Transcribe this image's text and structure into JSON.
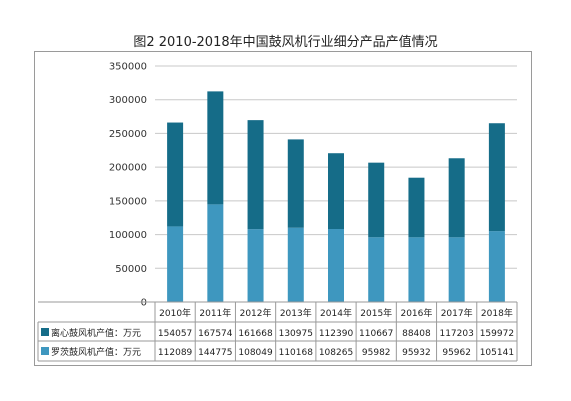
{
  "chart_data": {
    "type": "bar",
    "stacked": true,
    "title": "图2 2010-2018年中国鼓风机行业细分产品产值情况",
    "categories": [
      "2010年",
      "2011年",
      "2012年",
      "2013年",
      "2014年",
      "2015年",
      "2016年",
      "2017年",
      "2018年"
    ],
    "series": [
      {
        "name": "离心鼓风机产值：万元",
        "color": "#156c88",
        "values": [
          154057,
          167574,
          161668,
          130975,
          112390,
          110667,
          88408,
          117203,
          159972
        ]
      },
      {
        "name": "罗茨鼓风机产值：万元",
        "color": "#3e97bf",
        "values": [
          112089,
          144775,
          108049,
          110168,
          108265,
          95982,
          95932,
          95962,
          105141
        ]
      }
    ],
    "ylim": [
      0,
      350000
    ],
    "yticks": [
      "0",
      "50000",
      "100000",
      "150000",
      "200000",
      "250000",
      "300000",
      "350000"
    ],
    "grid": true,
    "legend": "table-below"
  }
}
